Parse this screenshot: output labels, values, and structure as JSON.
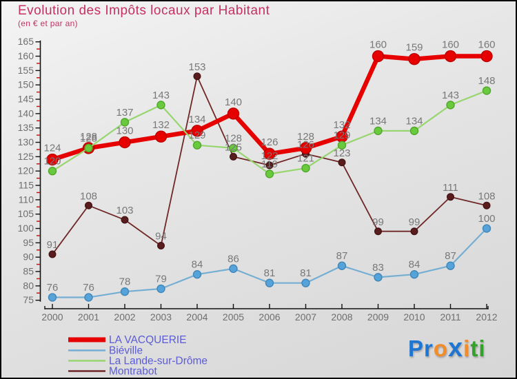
{
  "header": {
    "title": "Evolution des Impôts locaux par Habitant",
    "subtitle": "(en € et par an)"
  },
  "logo": {
    "text": "Proxiti",
    "letters": [
      {
        "ch": "P",
        "color": "#1f76d2"
      },
      {
        "ch": "r",
        "color": "#1f76d2"
      },
      {
        "ch": "o",
        "color": "#f28c28"
      },
      {
        "ch": "x",
        "color": "#1f76d2"
      },
      {
        "ch": "i",
        "color": "#f28c28"
      },
      {
        "ch": "t",
        "color": "#35a02c"
      },
      {
        "ch": "i",
        "color": "#35a02c"
      }
    ]
  },
  "chart_data": {
    "type": "line",
    "title": "Evolution des Impôts locaux par Habitant",
    "subtitle": "(en € et par an)",
    "x": [
      2000,
      2001,
      2002,
      2003,
      2004,
      2005,
      2006,
      2007,
      2008,
      2009,
      2010,
      2011,
      2012
    ],
    "series": [
      {
        "name": "LA VACQUERIE",
        "color": "#e60000",
        "marker_fill": "#e60000",
        "marker_stroke": "#bd0000",
        "line_width": 6.5,
        "marker_r": 8,
        "values": [
          124,
          128,
          130,
          132,
          134,
          140,
          126,
          128,
          132,
          160,
          159,
          160,
          160
        ]
      },
      {
        "name": "Biéville",
        "color": "#74aed3",
        "marker_fill": "#55a3d9",
        "marker_stroke": "#4186b8",
        "line_width": 2.2,
        "marker_r": 5.5,
        "values": [
          76,
          76,
          78,
          79,
          84,
          86,
          81,
          81,
          87,
          83,
          84,
          87,
          100
        ]
      },
      {
        "name": "La Lande-sur-Drôme",
        "color": "#97d56e",
        "marker_fill": "#69ca3d",
        "marker_stroke": "#51a62b",
        "line_width": 2.2,
        "marker_r": 5.5,
        "values": [
          120,
          128,
          137,
          143,
          129,
          128,
          119,
          121,
          129,
          134,
          134,
          143,
          148
        ]
      },
      {
        "name": "Montrabot",
        "color": "#6e2626",
        "marker_fill": "#5a1d1d",
        "marker_stroke": "#451414",
        "line_width": 1.8,
        "marker_r": 4.8,
        "values": [
          91,
          108,
          103,
          94,
          153,
          125,
          122,
          126,
          123,
          99,
          99,
          111,
          108
        ]
      }
    ],
    "ylim": [
      75,
      165
    ],
    "ytick_step": 5,
    "minor_tick_step": 2.5,
    "grid": false,
    "legend_position": "bottom-left",
    "label_color": "#787878",
    "axis_label_color": "#6e6e6e",
    "legend_text_color": "#5b5bd8",
    "minor_tick_color": "#d40000"
  }
}
